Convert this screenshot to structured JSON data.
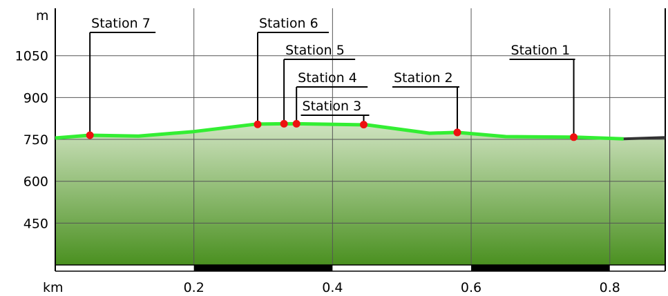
{
  "chart_data": {
    "type": "area",
    "title": "",
    "ylabel": "m",
    "xlabel": "km",
    "xlim": [
      0,
      0.88
    ],
    "ylim": [
      300,
      1220
    ],
    "yticks": [
      450,
      600,
      750,
      900,
      1050
    ],
    "xticks": [
      0.2,
      0.4,
      0.6,
      0.8
    ],
    "profile": {
      "x": [
        0.0,
        0.05,
        0.12,
        0.2,
        0.29,
        0.33,
        0.35,
        0.45,
        0.54,
        0.58,
        0.65,
        0.75,
        0.82,
        0.88
      ],
      "y": [
        755,
        765,
        762,
        778,
        805,
        806,
        806,
        802,
        772,
        775,
        760,
        758,
        752,
        757
      ]
    },
    "stations": [
      {
        "label": "Station 7",
        "x": 0.05,
        "y": 765
      },
      {
        "label": "Station 6",
        "x": 0.292,
        "y": 804
      },
      {
        "label": "Station 5",
        "x": 0.33,
        "y": 806
      },
      {
        "label": "Station 4",
        "x": 0.348,
        "y": 806
      },
      {
        "label": "Station 3",
        "x": 0.445,
        "y": 803
      },
      {
        "label": "Station 2",
        "x": 0.58,
        "y": 775
      },
      {
        "label": "Station 1",
        "x": 0.748,
        "y": 758
      }
    ],
    "colors": {
      "profile_line": "#33ee33",
      "profile_tail": "#333333",
      "fill_top": "#cfe3c0",
      "fill_bottom": "#4a9020",
      "station_marker": "#ee1111",
      "grid": "#555555"
    },
    "grid": true
  }
}
